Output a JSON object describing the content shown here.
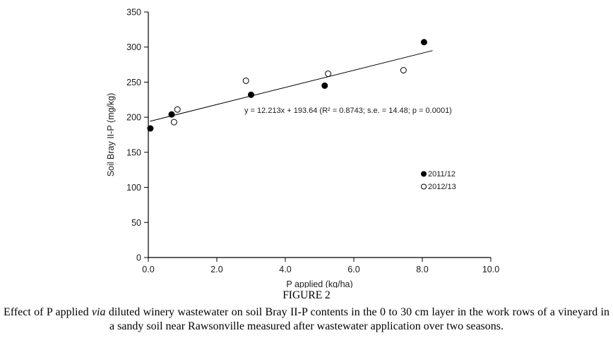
{
  "chart_data": {
    "type": "scatter",
    "title": "",
    "xlabel": "P applied (kg/ha)",
    "ylabel": "Soil Bray II-P (mg/kg)",
    "xlim": [
      0,
      10
    ],
    "ylim": [
      0,
      350
    ],
    "xticks": [
      0,
      2,
      4,
      6,
      8,
      10
    ],
    "xtick_labels": [
      "0.0",
      "2.0",
      "4.0",
      "6.0",
      "8.0",
      "10.0"
    ],
    "yticks": [
      0,
      50,
      100,
      150,
      200,
      250,
      300,
      350
    ],
    "ytick_labels": [
      "0",
      "50",
      "100",
      "150",
      "200",
      "250",
      "300",
      "350"
    ],
    "grid": false,
    "legend_position": "right-middle",
    "marker_color": "#000000",
    "series": [
      {
        "name": "2011/12",
        "marker": "filled-circle",
        "points": [
          [
            0.06,
            184
          ],
          [
            0.68,
            204
          ],
          [
            3.0,
            232
          ],
          [
            5.15,
            245
          ],
          [
            8.05,
            307
          ]
        ]
      },
      {
        "name": "2012/13",
        "marker": "open-circle",
        "points": [
          [
            0.75,
            193
          ],
          [
            0.85,
            211
          ],
          [
            2.85,
            252
          ],
          [
            5.25,
            262
          ],
          [
            7.45,
            267
          ]
        ]
      }
    ],
    "trendline": {
      "slope": 12.213,
      "intercept": 193.64,
      "r_squared": 0.8743,
      "se": 14.48,
      "p": 0.0001,
      "x_start": 0.05,
      "x_end": 8.3,
      "label": "y = 12.213x + 193.64 (R² = 0.8743; s.e. = 14.48; p = 0.0001)"
    }
  },
  "caption": {
    "figure_label": "FIGURE 2",
    "text_before_italic": "Effect of P applied ",
    "italic_word": "via",
    "text_after_italic": " diluted winery wastewater on soil Bray II-P contents in the 0 to 30 cm layer in the work rows of a vineyard in a sandy soil near Rawsonville measured after wastewater application over two seasons."
  }
}
